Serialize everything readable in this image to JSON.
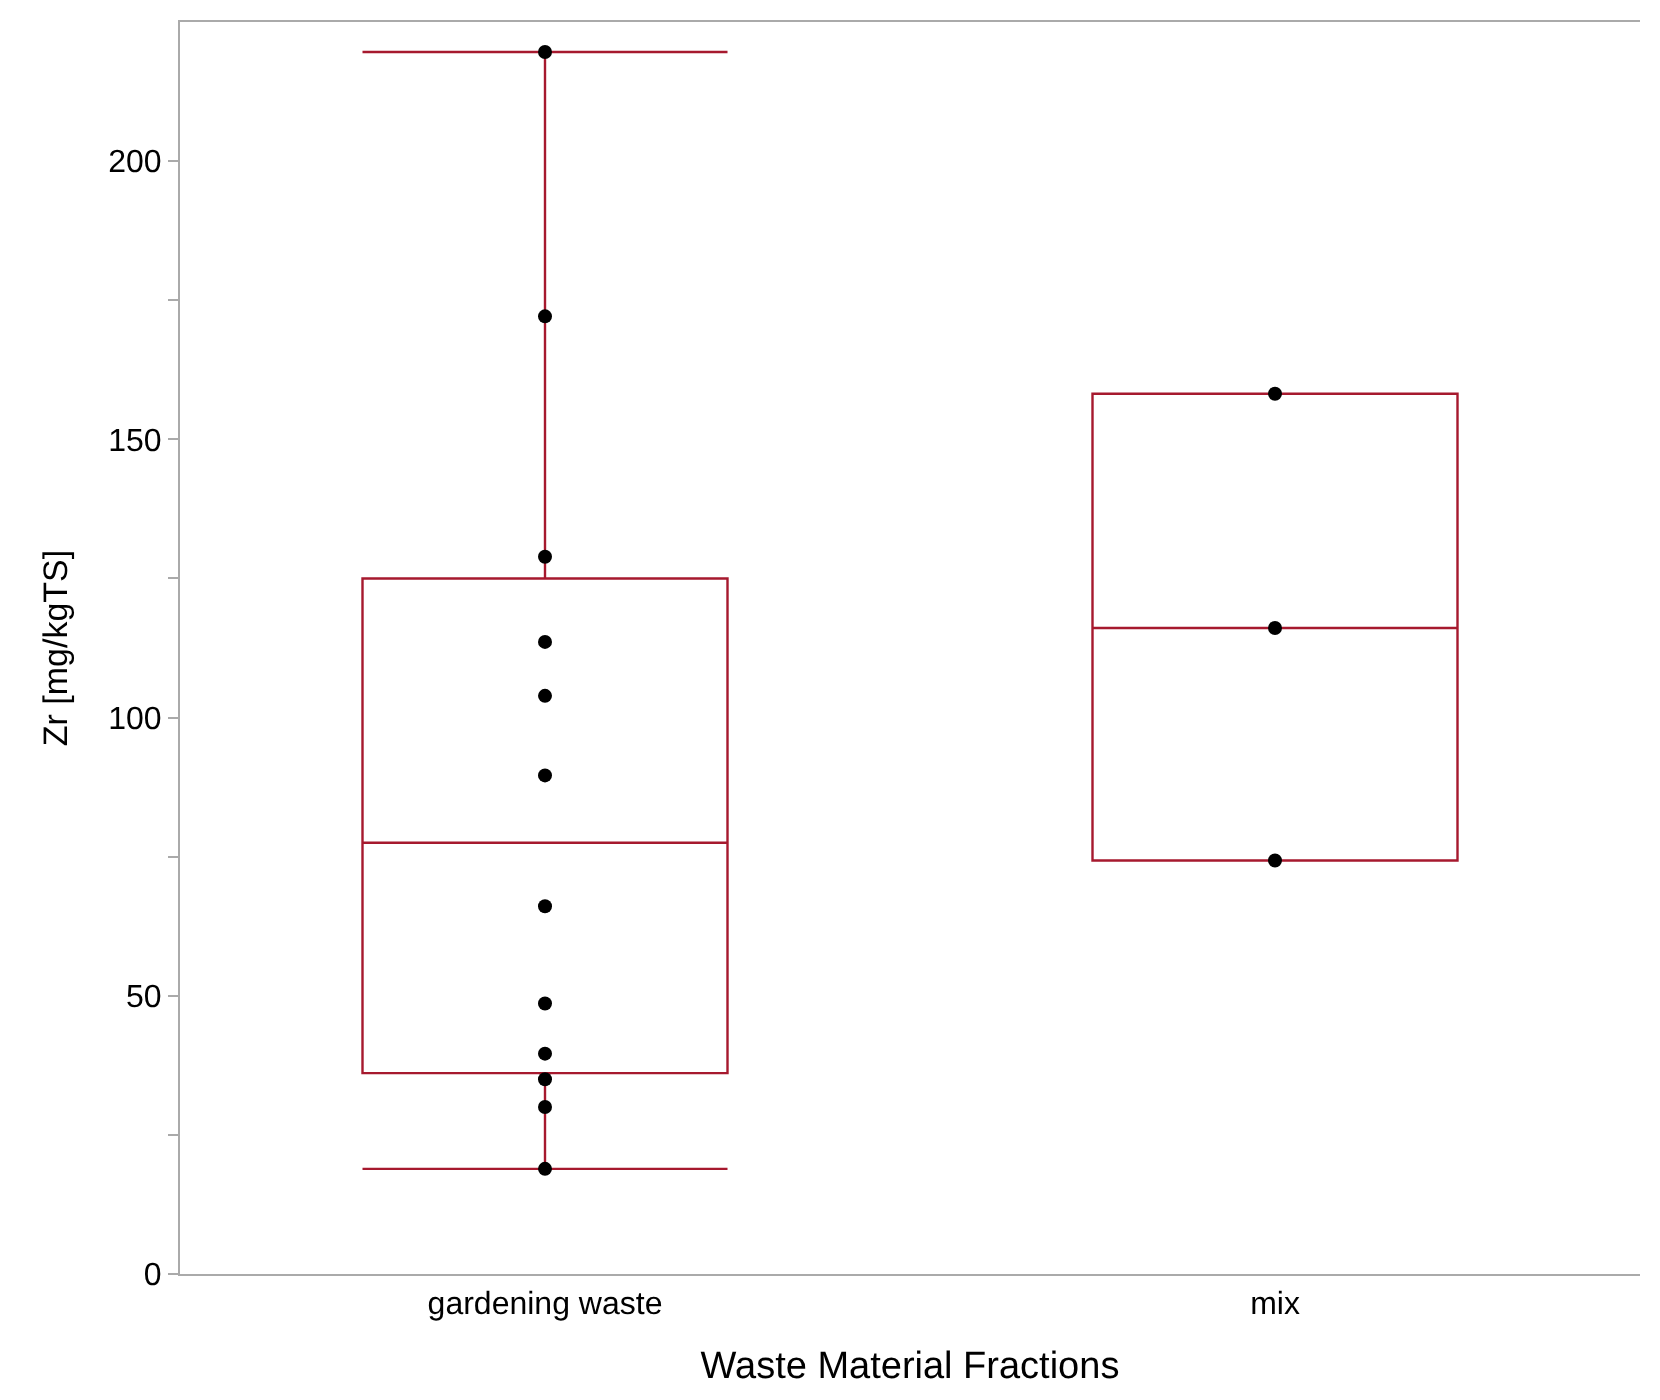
{
  "chart_data": {
    "type": "box",
    "xlabel": "Waste Material Fractions",
    "ylabel": "Zr [mg/kgTS]",
    "categories": [
      "gardening waste",
      "mix"
    ],
    "color": "#a6192e",
    "boxes": [
      {
        "low": 18.9,
        "q1": 36.1,
        "median": 77.5,
        "q3": 125,
        "high": 219.6
      },
      {
        "low": 74.3,
        "q1": 74.3,
        "median": 116.1,
        "q3": 158.2,
        "high": 158.2
      }
    ],
    "series": [
      {
        "type": "scatter",
        "color": "#000000",
        "x": [
          "gardening waste",
          "gardening waste",
          "gardening waste",
          "gardening waste",
          "gardening waste",
          "gardening waste",
          "gardening waste",
          "gardening waste",
          "gardening waste",
          "gardening waste",
          "gardening waste",
          "gardening waste",
          "mix",
          "mix",
          "mix"
        ],
        "values": [
          219.6,
          172.1,
          128.9,
          113.6,
          103.9,
          89.6,
          66.1,
          48.6,
          39.6,
          35,
          30,
          18.9,
          158.2,
          116.1,
          74.3
        ]
      }
    ],
    "ylim": [
      0,
      225
    ],
    "yticks": [
      0,
      {
        "value": 25,
        "label": null
      },
      50,
      {
        "value": 75,
        "label": null
      },
      100,
      {
        "value": 125,
        "label": null
      },
      150,
      {
        "value": 175,
        "label": null
      },
      200
    ],
    "marker": "circle"
  }
}
